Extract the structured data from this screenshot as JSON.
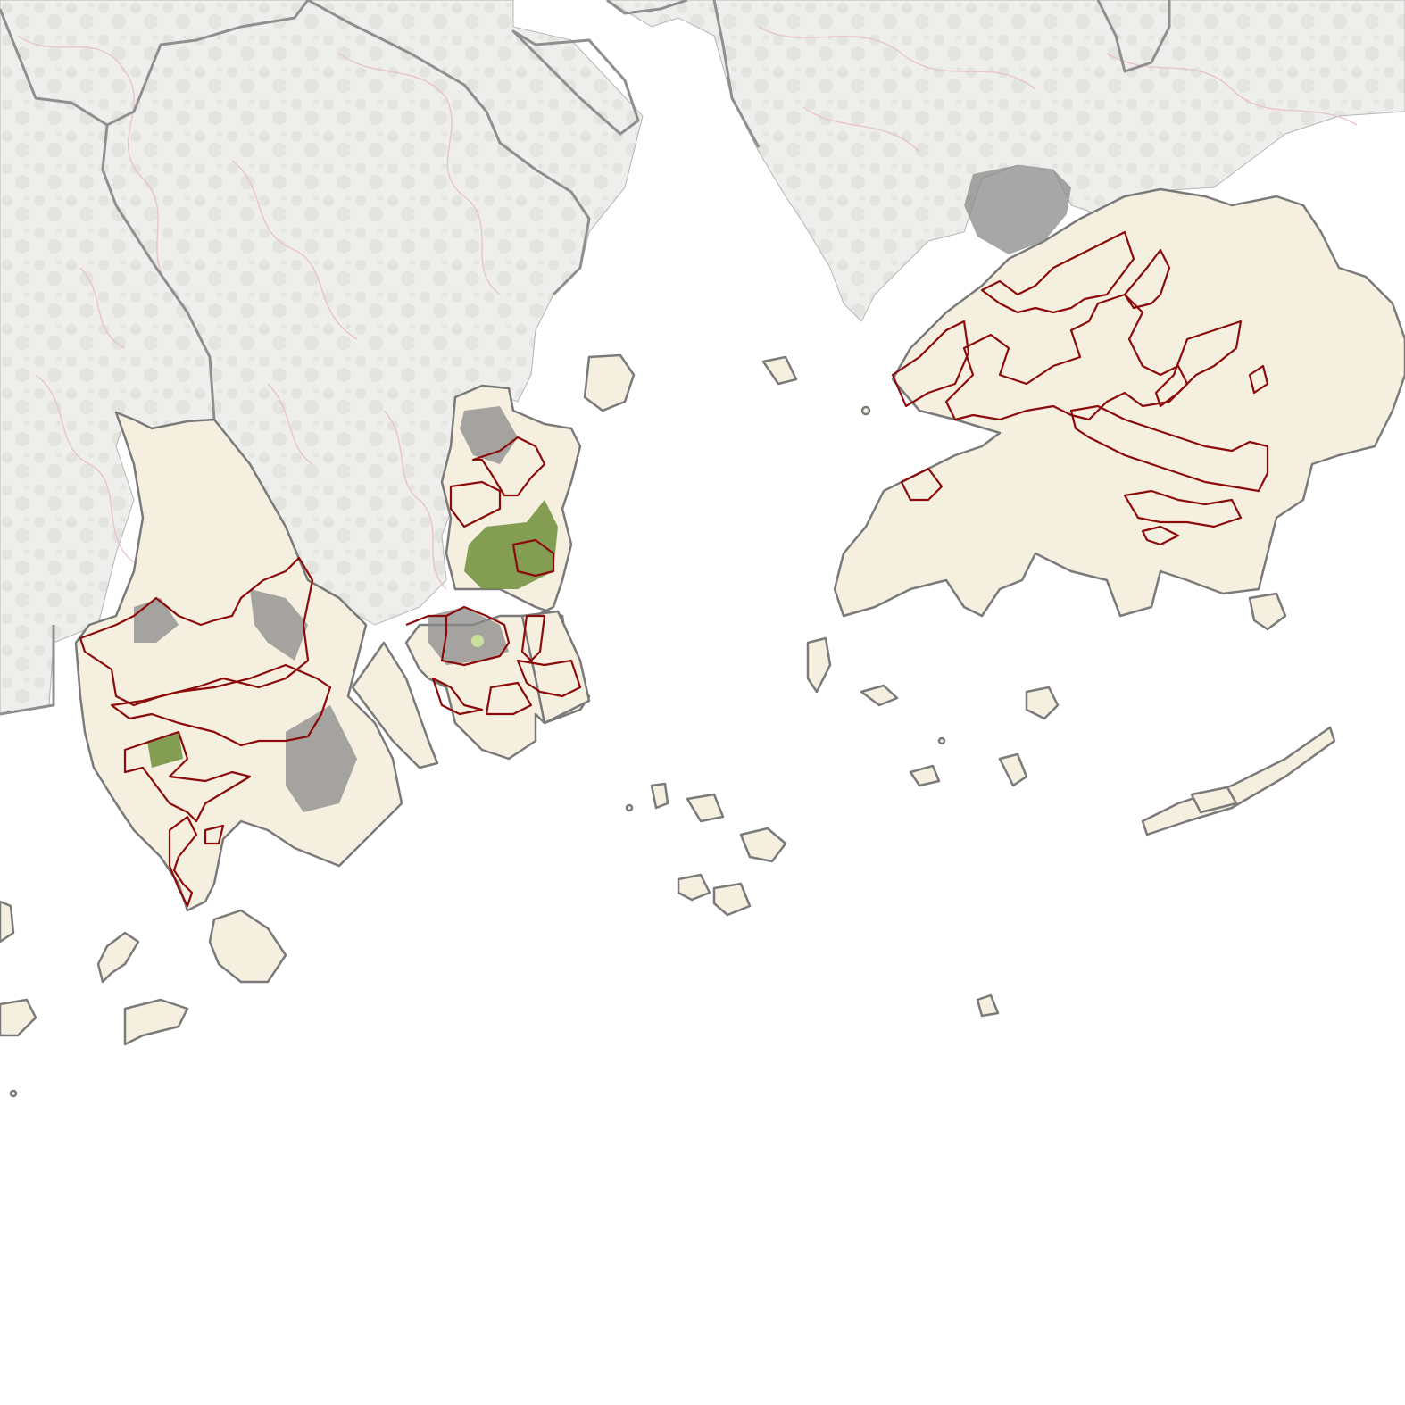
{
  "map": {
    "style": {
      "sea": "#ffffff",
      "mainland_fill": "#eeeeec",
      "mainland_texture": "#e3e3e0",
      "admin_boundary": "#8f8f8f",
      "contour_line": "#e7c4cb",
      "study_area_fill": "#f5efe0",
      "coastline": "#7a7a7a",
      "urban_fill": "#8a8a8a",
      "vegetation_fill": "#6f8f3a",
      "light_vegetation": "#c8e09a",
      "protected_area_outline": "#8b0a0a"
    }
  }
}
